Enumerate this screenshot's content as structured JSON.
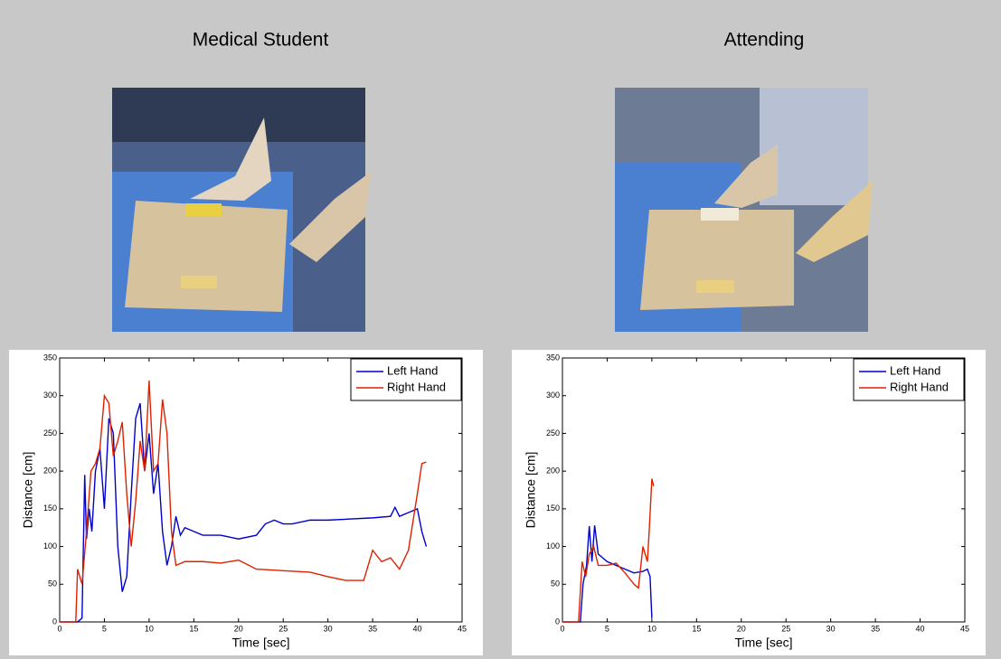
{
  "chart_data": [
    {
      "type": "line",
      "title": "Medical Student",
      "xlabel": "Time [sec]",
      "ylabel": "Distance [cm]",
      "xlim": [
        0,
        45
      ],
      "ylim": [
        0,
        350
      ],
      "xticks": [
        0,
        5,
        10,
        15,
        20,
        25,
        30,
        35,
        40,
        45
      ],
      "yticks": [
        0,
        50,
        100,
        150,
        200,
        250,
        300,
        350
      ],
      "grid": false,
      "legend": "upper right",
      "series": [
        {
          "name": "Left Hand",
          "color": "#0000cc",
          "x": [
            0,
            2,
            2.5,
            2.8,
            3,
            3.3,
            3.6,
            4,
            4.5,
            5,
            5.5,
            6,
            6.5,
            7,
            7.5,
            8,
            8.5,
            9,
            9.5,
            10,
            10.5,
            11,
            11.5,
            12,
            12.5,
            13,
            13.5,
            14,
            15,
            16,
            18,
            20,
            22,
            23,
            24,
            25,
            26,
            28,
            30,
            35,
            37,
            37.5,
            38,
            39,
            40,
            40.5,
            41
          ],
          "values": [
            0,
            0,
            5,
            195,
            110,
            150,
            120,
            200,
            230,
            150,
            270,
            250,
            100,
            40,
            60,
            170,
            270,
            290,
            200,
            250,
            170,
            210,
            120,
            75,
            100,
            140,
            115,
            125,
            120,
            115,
            115,
            110,
            115,
            130,
            135,
            130,
            130,
            135,
            135,
            138,
            140,
            152,
            140,
            145,
            150,
            120,
            100
          ]
        },
        {
          "name": "Right Hand",
          "color": "#dd2200",
          "x": [
            0,
            1.8,
            2,
            2.5,
            3,
            3.5,
            4,
            4.5,
            5,
            5.5,
            6,
            6.5,
            7,
            7.5,
            8,
            8.5,
            9,
            9.5,
            10,
            10.5,
            11,
            11.5,
            12,
            12.5,
            13,
            14,
            16,
            18,
            20,
            22,
            25,
            28,
            30,
            32,
            34,
            35,
            36,
            37,
            38,
            39,
            40,
            40.5,
            41
          ],
          "values": [
            0,
            0,
            70,
            50,
            120,
            200,
            210,
            230,
            300,
            290,
            220,
            240,
            265,
            170,
            100,
            160,
            240,
            200,
            320,
            200,
            210,
            295,
            250,
            120,
            75,
            80,
            80,
            78,
            82,
            70,
            68,
            66,
            60,
            55,
            55,
            95,
            80,
            85,
            70,
            95,
            170,
            210,
            212
          ]
        }
      ]
    },
    {
      "type": "line",
      "title": "Attending",
      "xlabel": "Time [sec]",
      "ylabel": "Distance [cm]",
      "xlim": [
        0,
        45
      ],
      "ylim": [
        0,
        350
      ],
      "xticks": [
        0,
        5,
        10,
        15,
        20,
        25,
        30,
        35,
        40,
        45
      ],
      "yticks": [
        0,
        50,
        100,
        150,
        200,
        250,
        300,
        350
      ],
      "grid": false,
      "legend": "upper right",
      "series": [
        {
          "name": "Left Hand",
          "color": "#0000cc",
          "x": [
            0,
            2,
            2.3,
            2.7,
            3,
            3.3,
            3.6,
            4,
            5,
            6,
            7,
            8,
            9,
            9.5,
            9.8,
            10
          ],
          "values": [
            0,
            0,
            50,
            75,
            127,
            80,
            128,
            90,
            80,
            75,
            70,
            65,
            67,
            70,
            60,
            5
          ]
        },
        {
          "name": "Right Hand",
          "color": "#dd2200",
          "x": [
            0,
            1.8,
            2.2,
            2.6,
            3,
            3.5,
            4,
            5,
            6,
            7,
            8,
            8.5,
            9,
            9.5,
            9.7,
            10,
            10.2
          ],
          "values": [
            0,
            0,
            80,
            60,
            90,
            100,
            75,
            75,
            78,
            65,
            50,
            45,
            100,
            80,
            120,
            190,
            180
          ]
        }
      ]
    }
  ]
}
